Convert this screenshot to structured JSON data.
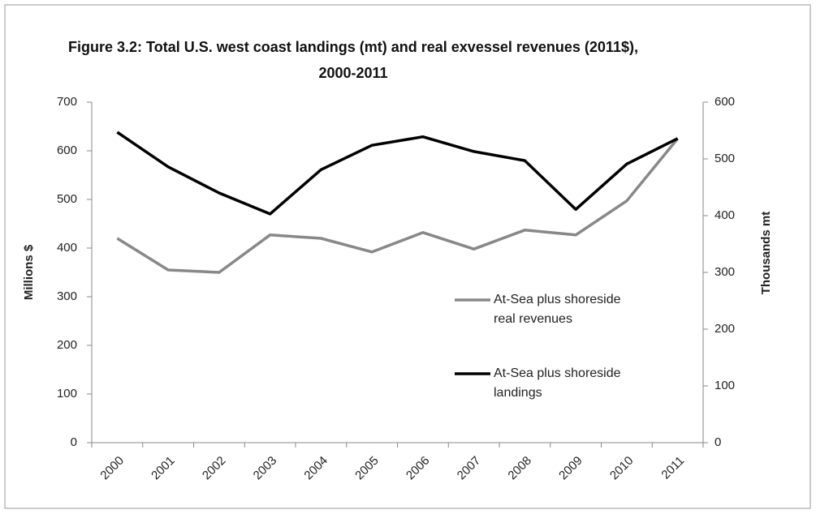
{
  "chart_data": {
    "type": "line",
    "title": "Figure 3.2: Total U.S. west coast landings (mt) and real exvessel revenues (2011$), 2000-2011",
    "categories": [
      "2000",
      "2001",
      "2002",
      "2003",
      "2004",
      "2005",
      "2006",
      "2007",
      "2008",
      "2009",
      "2010",
      "2011"
    ],
    "series": [
      {
        "name": "At-Sea plus shoreside real revenues",
        "color": "#888888",
        "axis": "y",
        "values": [
          420,
          355,
          350,
          427,
          420,
          392,
          432,
          398,
          437,
          427,
          497,
          625
        ]
      },
      {
        "name": "At-Sea plus shoreside landings",
        "color": "#000000",
        "axis": "y2",
        "values": [
          547,
          486,
          440,
          403,
          481,
          524,
          539,
          513,
          497,
          411,
          491,
          536
        ]
      }
    ],
    "ylabel": "Millions $",
    "y2label": "Thousands mt",
    "ylim": [
      0,
      700
    ],
    "yticks": [
      0,
      100,
      200,
      300,
      400,
      500,
      600,
      700
    ],
    "y2lim": [
      0,
      600
    ],
    "y2ticks": [
      0,
      100,
      200,
      300,
      400,
      500,
      600
    ],
    "grid": false
  }
}
